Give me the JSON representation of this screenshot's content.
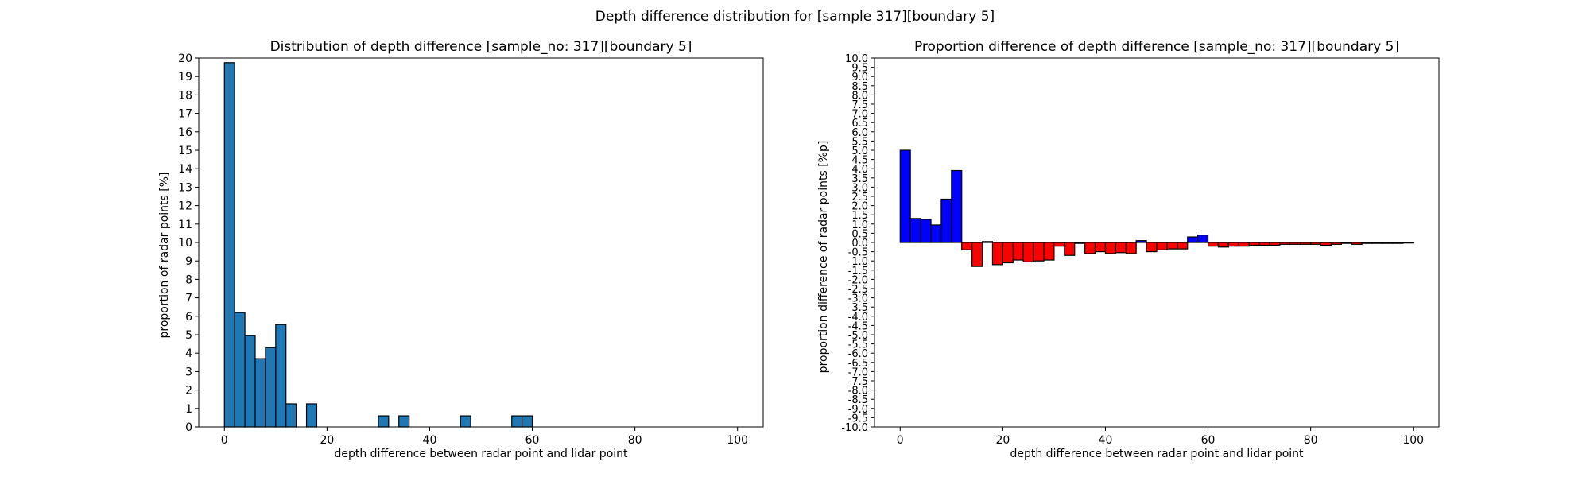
{
  "figure": {
    "suptitle": "Depth difference distribution for [sample 317][boundary 5]"
  },
  "chart_data": [
    {
      "type": "bar",
      "title": "Distribution of depth difference [sample_no: 317][boundary 5]",
      "xlabel": "depth difference between radar point and lidar point",
      "ylabel": "proportion of radar points [%]",
      "xlim": [
        -5,
        105
      ],
      "ylim": [
        0,
        20
      ],
      "xticks": [
        0,
        20,
        40,
        60,
        80,
        100
      ],
      "yticks": [
        0,
        1,
        2,
        3,
        4,
        5,
        6,
        7,
        8,
        9,
        10,
        11,
        12,
        13,
        14,
        15,
        16,
        17,
        18,
        19,
        20
      ],
      "bin_width": 2,
      "bin_starts": [
        0,
        2,
        4,
        6,
        8,
        10,
        12,
        16,
        30,
        34,
        46,
        56,
        58
      ],
      "values": [
        19.75,
        6.2,
        4.95,
        3.7,
        4.3,
        5.55,
        1.25,
        1.25,
        0.6,
        0.6,
        0.6,
        0.6,
        0.6
      ],
      "colors": {
        "bar": "#1f77b4",
        "edge": "#000000"
      },
      "grid": false
    },
    {
      "type": "bar",
      "title": "Proportion difference of depth difference [sample_no: 317][boundary 5]",
      "xlabel": "depth difference between radar point and lidar point",
      "ylabel": "proportion difference of radar points [%p]",
      "xlim": [
        -5,
        105
      ],
      "ylim": [
        -10,
        10
      ],
      "xticks": [
        0,
        20,
        40,
        60,
        80,
        100
      ],
      "yticks": [
        "-10.0",
        "-9.5",
        "-9.0",
        "-8.5",
        "-8.0",
        "-7.5",
        "-7.0",
        "-6.5",
        "-6.0",
        "-5.5",
        "-5.0",
        "-4.5",
        "-4.0",
        "-3.5",
        "-3.0",
        "-2.5",
        "-2.0",
        "-1.5",
        "-1.0",
        "-0.5",
        "0.0",
        "0.5",
        "1.0",
        "1.5",
        "2.0",
        "2.5",
        "3.0",
        "3.5",
        "4.0",
        "4.5",
        "5.0",
        "5.5",
        "6.0",
        "6.5",
        "7.0",
        "7.5",
        "8.0",
        "8.5",
        "9.0",
        "9.5",
        "10.0"
      ],
      "bin_width": 2,
      "bin_starts": [
        0,
        2,
        4,
        6,
        8,
        10,
        12,
        14,
        16,
        18,
        20,
        22,
        24,
        26,
        28,
        30,
        32,
        34,
        36,
        38,
        40,
        42,
        44,
        46,
        48,
        50,
        52,
        54,
        56,
        58,
        60,
        62,
        64,
        66,
        68,
        70,
        72,
        74,
        76,
        78,
        80,
        82,
        84,
        86,
        88,
        90,
        92,
        94,
        96,
        98
      ],
      "values": [
        5.0,
        1.3,
        1.25,
        0.95,
        2.35,
        3.9,
        -0.4,
        -1.3,
        0.05,
        -1.2,
        -1.1,
        -0.95,
        -1.05,
        -1.0,
        -0.95,
        -0.2,
        -0.7,
        -0.05,
        -0.6,
        -0.5,
        -0.6,
        -0.55,
        -0.6,
        0.1,
        -0.5,
        -0.4,
        -0.35,
        -0.35,
        0.3,
        0.4,
        -0.2,
        -0.25,
        -0.2,
        -0.2,
        -0.15,
        -0.15,
        -0.15,
        -0.1,
        -0.1,
        -0.1,
        -0.1,
        -0.15,
        -0.1,
        -0.05,
        -0.1,
        -0.05,
        -0.05,
        -0.05,
        -0.05,
        -0.03
      ],
      "colors": {
        "positive": "#0000ff",
        "negative": "#ff0000",
        "edge": "#000000"
      },
      "grid": false
    }
  ]
}
